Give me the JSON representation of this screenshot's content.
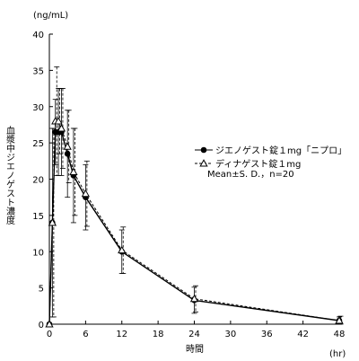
{
  "chart_data": {
    "type": "line",
    "y_unit": "(ng/mL)",
    "x_unit": "(hr)",
    "xlabel": "時間",
    "ylabel": "血漿中ジエノゲスト濃度",
    "xlim": [
      0,
      48
    ],
    "ylim": [
      0,
      40
    ],
    "x_ticks": [
      0,
      6,
      12,
      18,
      24,
      30,
      36,
      42,
      48
    ],
    "y_ticks": [
      0,
      5,
      10,
      15,
      20,
      25,
      30,
      35,
      40
    ],
    "legend_placement": "right",
    "legend_note": "Mean±S. D.，n=20",
    "series": [
      {
        "name": "ジエノゲスト錠１mg「ニプロ」",
        "marker": "filled-circle",
        "line": "solid",
        "color": "#000000",
        "points": [
          {
            "x": 0,
            "y": 0,
            "sd": 0
          },
          {
            "x": 0.5,
            "y": 14,
            "sd": 13
          },
          {
            "x": 1,
            "y": 26.5,
            "sd": 4.5
          },
          {
            "x": 1.5,
            "y": 26.5,
            "sd": 6
          },
          {
            "x": 2,
            "y": 26.5,
            "sd": 6
          },
          {
            "x": 3,
            "y": 23.5,
            "sd": 6
          },
          {
            "x": 4,
            "y": 20.5,
            "sd": 6.5
          },
          {
            "x": 6,
            "y": 17.5,
            "sd": 4.5
          },
          {
            "x": 12,
            "y": 10,
            "sd": 3
          },
          {
            "x": 24,
            "y": 3.3,
            "sd": 1.8
          },
          {
            "x": 48,
            "y": 0.5,
            "sd": 0.5
          }
        ]
      },
      {
        "name": "ディナゲスト錠１mg",
        "marker": "open-triangle",
        "line": "dashed",
        "color": "#000000",
        "points": [
          {
            "x": 0,
            "y": 0,
            "sd": 0
          },
          {
            "x": 0.5,
            "y": 14,
            "sd": 13
          },
          {
            "x": 1,
            "y": 28,
            "sd": 7.5
          },
          {
            "x": 1.5,
            "y": 28,
            "sd": 4.5
          },
          {
            "x": 2,
            "y": 27,
            "sd": 5.5
          },
          {
            "x": 3,
            "y": 24.5,
            "sd": 5
          },
          {
            "x": 4,
            "y": 21,
            "sd": 6
          },
          {
            "x": 6,
            "y": 18,
            "sd": 4.5
          },
          {
            "x": 12,
            "y": 10.2,
            "sd": 3.2
          },
          {
            "x": 24,
            "y": 3.5,
            "sd": 1.8
          },
          {
            "x": 48,
            "y": 0.5,
            "sd": 0.6
          }
        ]
      }
    ]
  }
}
